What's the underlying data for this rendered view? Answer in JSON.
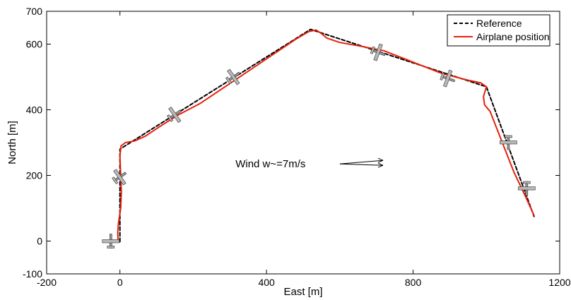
{
  "chart_data": {
    "type": "line",
    "title": "",
    "xlabel": "East [m]",
    "ylabel": "North [m]",
    "xlim": [
      -200,
      1200
    ],
    "ylim": [
      -100,
      700
    ],
    "xticks": [
      -200,
      0,
      400,
      800,
      1200
    ],
    "yticks": [
      -100,
      0,
      200,
      400,
      600,
      700
    ],
    "xtick_labels": [
      "-200",
      "0",
      "400",
      "800",
      "1200"
    ],
    "ytick_labels": [
      "-100",
      "0",
      "200",
      "400",
      "600",
      "700"
    ],
    "grid": false,
    "legend_position": "top-right",
    "series": [
      {
        "name": "Reference",
        "color": "#000000",
        "style": "dashed",
        "points": [
          [
            0,
            -2
          ],
          [
            0,
            280
          ],
          [
            520,
            645
          ],
          [
            1000,
            470
          ],
          [
            1130,
            75
          ]
        ]
      },
      {
        "name": "Airplane position",
        "color": "#e8200c",
        "style": "solid",
        "points": [
          [
            -5,
            0
          ],
          [
            -6,
            25
          ],
          [
            -4,
            55
          ],
          [
            2,
            100
          ],
          [
            4,
            150
          ],
          [
            2,
            200
          ],
          [
            0,
            260
          ],
          [
            3,
            290
          ],
          [
            15,
            300
          ],
          [
            40,
            305
          ],
          [
            70,
            320
          ],
          [
            110,
            350
          ],
          [
            160,
            385
          ],
          [
            220,
            420
          ],
          [
            300,
            480
          ],
          [
            400,
            555
          ],
          [
            480,
            615
          ],
          [
            515,
            638
          ],
          [
            535,
            643
          ],
          [
            550,
            632
          ],
          [
            565,
            618
          ],
          [
            600,
            605
          ],
          [
            650,
            595
          ],
          [
            720,
            580
          ],
          [
            800,
            545
          ],
          [
            880,
            510
          ],
          [
            950,
            490
          ],
          [
            985,
            482
          ],
          [
            1000,
            470
          ],
          [
            992,
            440
          ],
          [
            995,
            415
          ],
          [
            1010,
            395
          ],
          [
            1040,
            310
          ],
          [
            1075,
            210
          ],
          [
            1105,
            140
          ],
          [
            1130,
            78
          ]
        ]
      }
    ],
    "annotation": {
      "text": "Wind w~=7m/s",
      "x": 350,
      "y": 235
    },
    "airplane_markers": [
      {
        "x": -25,
        "y": 0,
        "heading_deg": 0
      },
      {
        "x": 0,
        "y": 195,
        "heading_deg": 55
      },
      {
        "x": 150,
        "y": 385,
        "heading_deg": 55
      },
      {
        "x": 310,
        "y": 500,
        "heading_deg": 55
      },
      {
        "x": 705,
        "y": 575,
        "heading_deg": 110
      },
      {
        "x": 895,
        "y": 495,
        "heading_deg": 110
      },
      {
        "x": 1060,
        "y": 300,
        "heading_deg": 180
      },
      {
        "x": 1110,
        "y": 160,
        "heading_deg": 180
      }
    ]
  }
}
